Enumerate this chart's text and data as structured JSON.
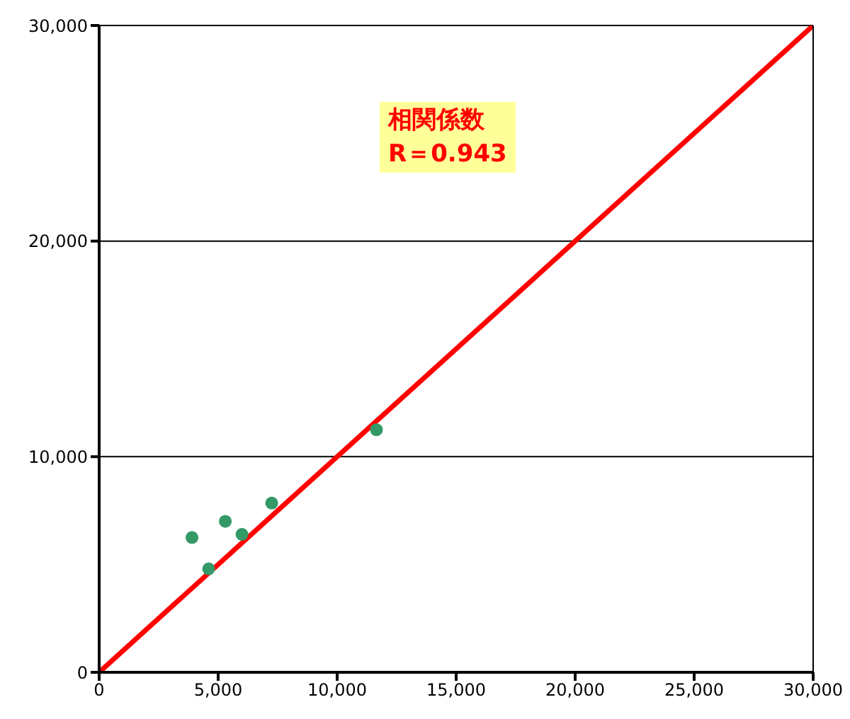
{
  "chart_data": {
    "type": "scatter",
    "xlim": [
      0,
      30000
    ],
    "ylim": [
      0,
      30000
    ],
    "xticks": [
      0,
      {
        "value": 5000,
        "label": "5,000"
      },
      {
        "value": 10000,
        "label": "10,000"
      },
      {
        "value": 15000,
        "label": "15,000"
      },
      {
        "value": 20000,
        "label": "20,000"
      },
      {
        "value": 25000,
        "label": "25,000"
      },
      {
        "value": 30000,
        "label": "30,000"
      }
    ],
    "yticks": [
      0,
      {
        "value": 10000,
        "label": "10,000"
      },
      {
        "value": 20000,
        "label": "20,000"
      },
      {
        "value": 30000,
        "label": "30,000"
      }
    ],
    "grid": "y",
    "annotations": [
      "相関係数",
      "R＝0.943"
    ],
    "series": [
      {
        "color": "#339966",
        "marker": "circle",
        "x": [
          3900,
          4600,
          5300,
          6000,
          7250,
          11650
        ],
        "values": [
          6250,
          4800,
          7000,
          6400,
          7850,
          11250
        ]
      },
      {
        "type": "line",
        "color": "#ff0000",
        "x": [
          0,
          30000
        ],
        "values": [
          0,
          30000
        ]
      }
    ]
  }
}
